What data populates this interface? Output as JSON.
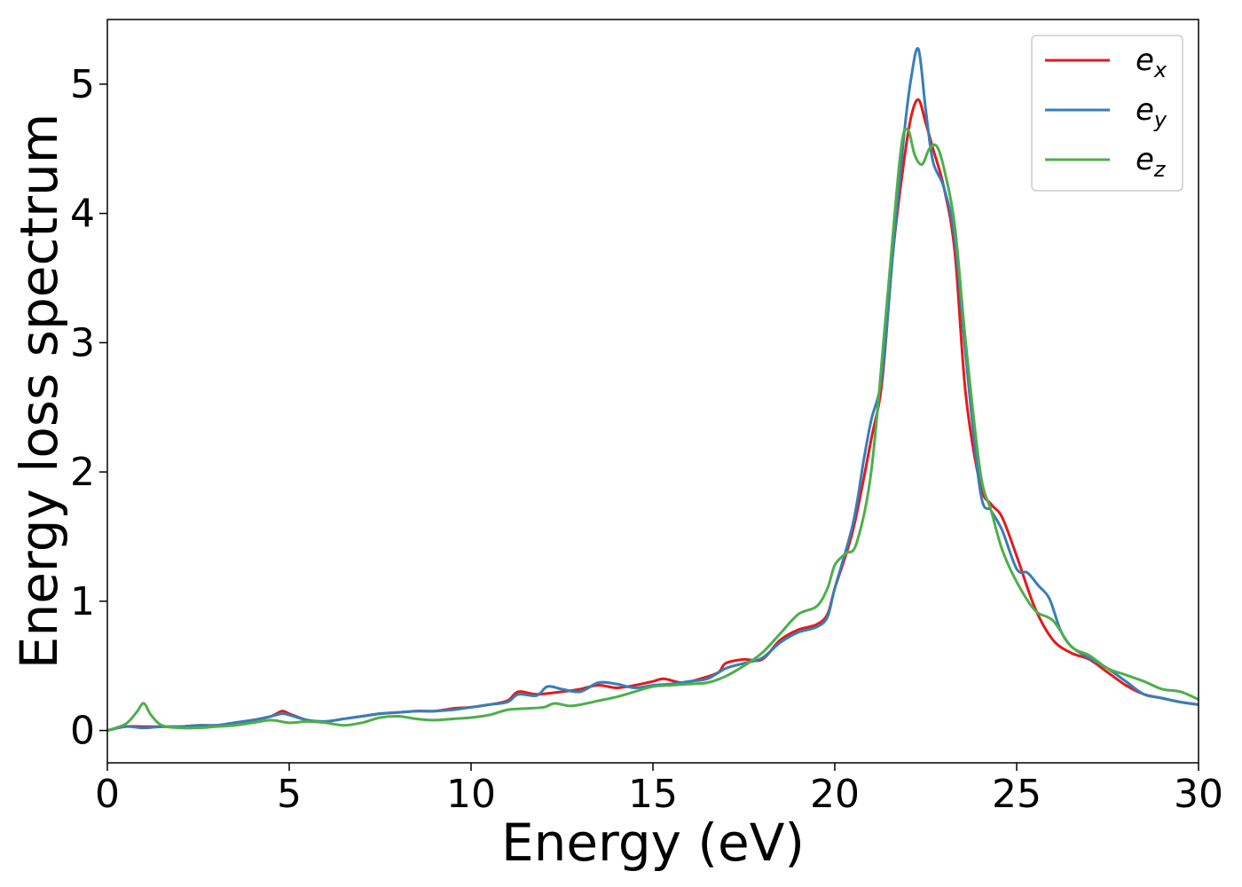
{
  "chart_data": {
    "type": "line",
    "title": "",
    "xlabel": "Energy (eV)",
    "ylabel": "Energy loss spectrum",
    "xlim": [
      0,
      30
    ],
    "ylim": [
      -0.25,
      5.5
    ],
    "xticks": [
      0,
      5,
      10,
      15,
      20,
      25,
      30
    ],
    "yticks": [
      0,
      1,
      2,
      3,
      4,
      5
    ],
    "grid": false,
    "legend_position": "top-right",
    "series": [
      {
        "name": "e_x",
        "label_base": "e",
        "label_sub": "x",
        "color": "#e41a1c",
        "points": [
          [
            0,
            0.0
          ],
          [
            0.5,
            0.03
          ],
          [
            1,
            0.03
          ],
          [
            1.5,
            0.03
          ],
          [
            2,
            0.03
          ],
          [
            2.5,
            0.04
          ],
          [
            3,
            0.04
          ],
          [
            3.5,
            0.06
          ],
          [
            4,
            0.08
          ],
          [
            4.5,
            0.11
          ],
          [
            4.8,
            0.15
          ],
          [
            5,
            0.13
          ],
          [
            5.5,
            0.08
          ],
          [
            6,
            0.07
          ],
          [
            6.5,
            0.09
          ],
          [
            7,
            0.11
          ],
          [
            7.5,
            0.13
          ],
          [
            8,
            0.14
          ],
          [
            8.5,
            0.15
          ],
          [
            9,
            0.15
          ],
          [
            9.5,
            0.17
          ],
          [
            10,
            0.18
          ],
          [
            10.5,
            0.2
          ],
          [
            11,
            0.23
          ],
          [
            11.3,
            0.3
          ],
          [
            11.8,
            0.28
          ],
          [
            12.5,
            0.3
          ],
          [
            13,
            0.32
          ],
          [
            13.5,
            0.35
          ],
          [
            14,
            0.33
          ],
          [
            14.5,
            0.35
          ],
          [
            15,
            0.38
          ],
          [
            15.3,
            0.4
          ],
          [
            15.8,
            0.37
          ],
          [
            16.3,
            0.4
          ],
          [
            16.8,
            0.45
          ],
          [
            17,
            0.52
          ],
          [
            17.5,
            0.55
          ],
          [
            18,
            0.55
          ],
          [
            18.5,
            0.7
          ],
          [
            19,
            0.78
          ],
          [
            19.5,
            0.82
          ],
          [
            19.8,
            0.9
          ],
          [
            20,
            1.1
          ],
          [
            20.5,
            1.55
          ],
          [
            21,
            2.25
          ],
          [
            21.3,
            2.7
          ],
          [
            21.6,
            3.7
          ],
          [
            21.9,
            4.4
          ],
          [
            22.1,
            4.75
          ],
          [
            22.3,
            4.88
          ],
          [
            22.5,
            4.7
          ],
          [
            22.7,
            4.5
          ],
          [
            23,
            4.2
          ],
          [
            23.3,
            3.7
          ],
          [
            23.6,
            2.6
          ],
          [
            24,
            1.9
          ],
          [
            24.3,
            1.75
          ],
          [
            24.6,
            1.65
          ],
          [
            25,
            1.35
          ],
          [
            25.5,
            0.95
          ],
          [
            26,
            0.7
          ],
          [
            26.5,
            0.6
          ],
          [
            27,
            0.55
          ],
          [
            27.5,
            0.45
          ],
          [
            28,
            0.35
          ],
          [
            28.5,
            0.28
          ],
          [
            29,
            0.25
          ],
          [
            29.5,
            0.22
          ],
          [
            30,
            0.2
          ]
        ]
      },
      {
        "name": "e_y",
        "label_base": "e",
        "label_sub": "y",
        "color": "#377eb8",
        "points": [
          [
            0,
            0.0
          ],
          [
            0.5,
            0.03
          ],
          [
            1,
            0.02
          ],
          [
            1.5,
            0.03
          ],
          [
            2,
            0.03
          ],
          [
            2.5,
            0.04
          ],
          [
            3,
            0.04
          ],
          [
            3.5,
            0.06
          ],
          [
            4,
            0.08
          ],
          [
            4.5,
            0.11
          ],
          [
            4.8,
            0.13
          ],
          [
            5,
            0.12
          ],
          [
            5.5,
            0.08
          ],
          [
            6,
            0.07
          ],
          [
            6.5,
            0.09
          ],
          [
            7,
            0.11
          ],
          [
            7.5,
            0.13
          ],
          [
            8,
            0.14
          ],
          [
            8.5,
            0.15
          ],
          [
            9,
            0.15
          ],
          [
            9.5,
            0.16
          ],
          [
            10,
            0.18
          ],
          [
            10.5,
            0.2
          ],
          [
            11,
            0.22
          ],
          [
            11.3,
            0.28
          ],
          [
            11.8,
            0.27
          ],
          [
            12.1,
            0.34
          ],
          [
            12.5,
            0.32
          ],
          [
            13,
            0.3
          ],
          [
            13.5,
            0.37
          ],
          [
            14,
            0.36
          ],
          [
            14.5,
            0.33
          ],
          [
            15,
            0.35
          ],
          [
            15.5,
            0.36
          ],
          [
            16,
            0.38
          ],
          [
            16.5,
            0.4
          ],
          [
            17,
            0.48
          ],
          [
            17.5,
            0.52
          ],
          [
            18,
            0.56
          ],
          [
            18.5,
            0.68
          ],
          [
            19,
            0.76
          ],
          [
            19.5,
            0.8
          ],
          [
            19.8,
            0.88
          ],
          [
            20,
            1.1
          ],
          [
            20.5,
            1.6
          ],
          [
            20.8,
            2.1
          ],
          [
            21,
            2.4
          ],
          [
            21.3,
            2.75
          ],
          [
            21.6,
            3.7
          ],
          [
            21.9,
            4.6
          ],
          [
            22.1,
            5.05
          ],
          [
            22.3,
            5.27
          ],
          [
            22.5,
            4.8
          ],
          [
            22.7,
            4.4
          ],
          [
            23,
            4.2
          ],
          [
            23.3,
            3.8
          ],
          [
            23.6,
            2.9
          ],
          [
            24,
            1.85
          ],
          [
            24.3,
            1.7
          ],
          [
            24.6,
            1.55
          ],
          [
            25,
            1.25
          ],
          [
            25.3,
            1.22
          ],
          [
            25.6,
            1.12
          ],
          [
            25.9,
            1.02
          ],
          [
            26.2,
            0.78
          ],
          [
            26.5,
            0.65
          ],
          [
            27,
            0.56
          ],
          [
            27.5,
            0.48
          ],
          [
            28,
            0.38
          ],
          [
            28.5,
            0.28
          ],
          [
            29,
            0.25
          ],
          [
            29.5,
            0.22
          ],
          [
            30,
            0.2
          ]
        ]
      },
      {
        "name": "e_z",
        "label_base": "e",
        "label_sub": "z",
        "color": "#4daf4a",
        "points": [
          [
            0,
            0.0
          ],
          [
            0.5,
            0.05
          ],
          [
            0.8,
            0.14
          ],
          [
            1,
            0.21
          ],
          [
            1.2,
            0.12
          ],
          [
            1.5,
            0.04
          ],
          [
            2,
            0.02
          ],
          [
            2.5,
            0.02
          ],
          [
            3,
            0.03
          ],
          [
            3.5,
            0.04
          ],
          [
            4,
            0.06
          ],
          [
            4.5,
            0.08
          ],
          [
            5,
            0.06
          ],
          [
            5.5,
            0.07
          ],
          [
            6,
            0.06
          ],
          [
            6.5,
            0.04
          ],
          [
            7,
            0.06
          ],
          [
            7.5,
            0.1
          ],
          [
            8,
            0.11
          ],
          [
            8.5,
            0.09
          ],
          [
            9,
            0.08
          ],
          [
            9.5,
            0.09
          ],
          [
            10,
            0.1
          ],
          [
            10.5,
            0.12
          ],
          [
            11,
            0.16
          ],
          [
            11.5,
            0.17
          ],
          [
            12,
            0.18
          ],
          [
            12.3,
            0.21
          ],
          [
            12.7,
            0.19
          ],
          [
            13,
            0.2
          ],
          [
            13.5,
            0.23
          ],
          [
            14,
            0.26
          ],
          [
            14.5,
            0.3
          ],
          [
            15,
            0.34
          ],
          [
            15.5,
            0.35
          ],
          [
            16,
            0.36
          ],
          [
            16.5,
            0.37
          ],
          [
            17,
            0.42
          ],
          [
            17.5,
            0.5
          ],
          [
            18,
            0.6
          ],
          [
            18.5,
            0.75
          ],
          [
            19,
            0.9
          ],
          [
            19.5,
            0.96
          ],
          [
            19.8,
            1.1
          ],
          [
            20,
            1.28
          ],
          [
            20.3,
            1.37
          ],
          [
            20.6,
            1.45
          ],
          [
            21,
            2.0
          ],
          [
            21.4,
            3.2
          ],
          [
            21.8,
            4.45
          ],
          [
            22,
            4.65
          ],
          [
            22.2,
            4.45
          ],
          [
            22.4,
            4.38
          ],
          [
            22.6,
            4.5
          ],
          [
            22.8,
            4.52
          ],
          [
            23,
            4.35
          ],
          [
            23.3,
            3.9
          ],
          [
            23.6,
            3.0
          ],
          [
            24,
            2.0
          ],
          [
            24.3,
            1.7
          ],
          [
            24.6,
            1.4
          ],
          [
            25,
            1.15
          ],
          [
            25.5,
            0.93
          ],
          [
            26,
            0.85
          ],
          [
            26.5,
            0.65
          ],
          [
            27,
            0.58
          ],
          [
            27.5,
            0.48
          ],
          [
            28,
            0.43
          ],
          [
            28.5,
            0.38
          ],
          [
            29,
            0.32
          ],
          [
            29.5,
            0.3
          ],
          [
            30,
            0.24
          ]
        ]
      }
    ]
  }
}
